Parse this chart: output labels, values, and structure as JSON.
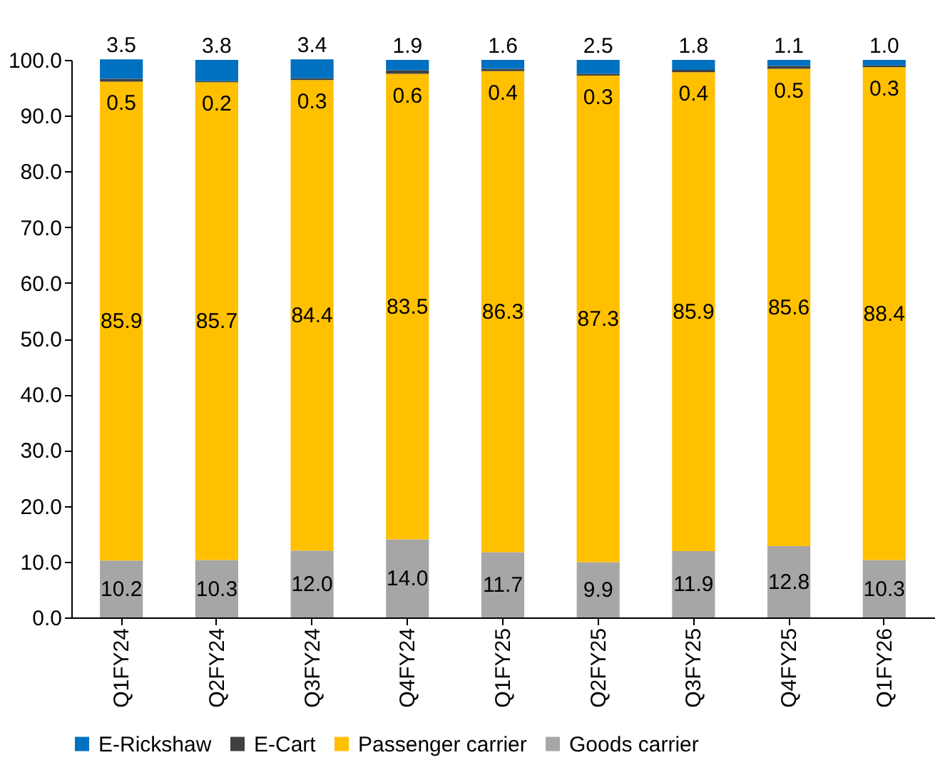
{
  "chart_data": {
    "type": "bar",
    "stacked": true,
    "categories": [
      "Q1FY24",
      "Q2FY24",
      "Q3FY24",
      "Q4FY24",
      "Q1FY25",
      "Q2FY25",
      "Q3FY25",
      "Q4FY25",
      "Q1FY26"
    ],
    "series": [
      {
        "name": "Goods carrier",
        "color": "#a6a6a6",
        "values": [
          10.2,
          10.3,
          12.0,
          14.0,
          11.7,
          9.9,
          11.9,
          12.8,
          10.3
        ],
        "value_labels": [
          "10.2",
          "10.3",
          "12.0",
          "14.0",
          "11.7",
          "9.9",
          "11.9",
          "12.8",
          "10.3"
        ]
      },
      {
        "name": "Passenger carrier",
        "color": "#ffc000",
        "values": [
          85.9,
          85.7,
          84.4,
          83.5,
          86.3,
          87.3,
          85.9,
          85.6,
          88.4
        ]
      },
      {
        "name": "E-Cart",
        "color": "#404040",
        "values": [
          0.5,
          0.2,
          0.3,
          0.6,
          0.4,
          0.3,
          0.4,
          0.5,
          0.3
        ]
      },
      {
        "name": "E-Rickshaw",
        "color": "#0070c0",
        "values": [
          3.5,
          3.8,
          3.4,
          1.9,
          1.6,
          2.5,
          1.8,
          1.1,
          1.0
        ],
        "value_labels": [
          "3.5",
          "3.8",
          "3.4",
          "1.9",
          "1.6",
          "2.5",
          "1.8",
          "1.1",
          "1.0"
        ]
      }
    ],
    "ylim": [
      0,
      100
    ],
    "yticks": [
      {
        "value": 0,
        "label": "0.0"
      },
      {
        "value": 10,
        "label": "10.0"
      },
      {
        "value": 20,
        "label": "20.0"
      },
      {
        "value": 30,
        "label": "30.0"
      },
      {
        "value": 40,
        "label": "40.0"
      },
      {
        "value": 50,
        "label": "50.0"
      },
      {
        "value": 60,
        "label": "60.0"
      },
      {
        "value": 70,
        "label": "70.0"
      },
      {
        "value": 80,
        "label": "80.0"
      },
      {
        "value": 90,
        "label": "90.0"
      },
      {
        "value": 100,
        "label": "100.0"
      }
    ],
    "data_labels": true,
    "legend": "bottom",
    "grid": false
  }
}
